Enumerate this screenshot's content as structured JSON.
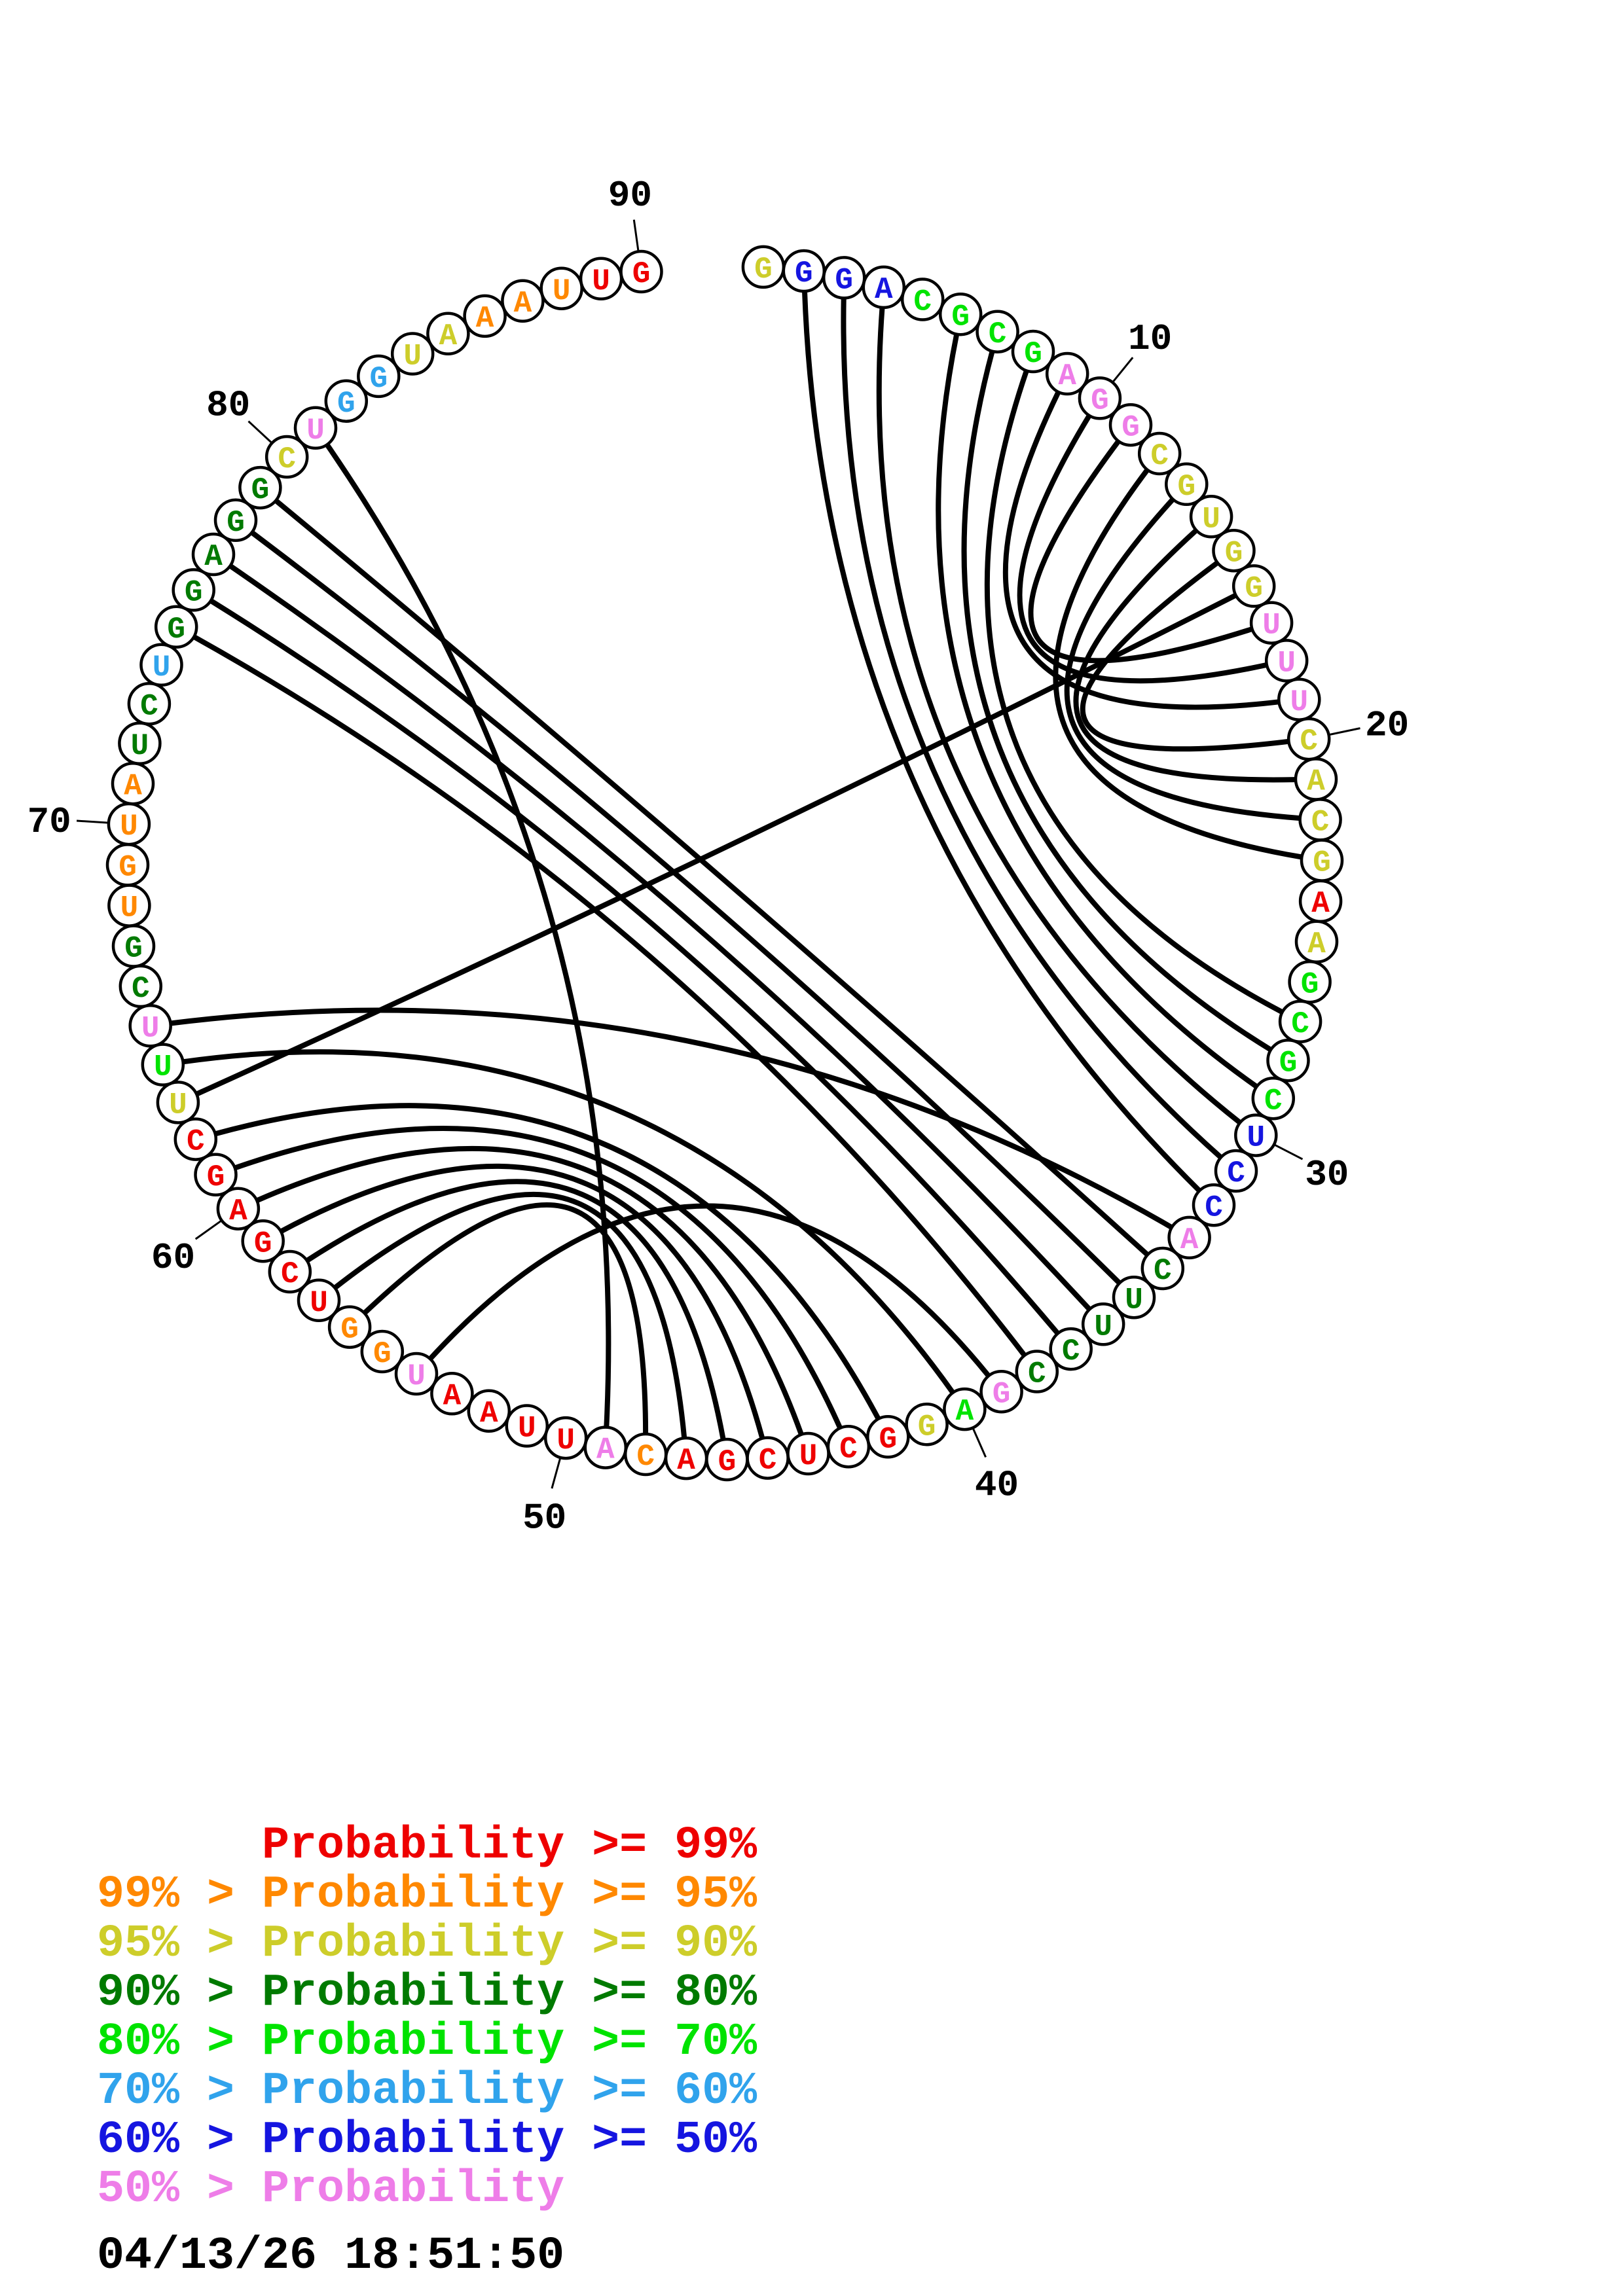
{
  "chart_data": {
    "type": "circular-arc-diagram",
    "title": "RNA secondary structure circle plot with base-pair probability coloring",
    "sequence_length": 90,
    "sequence": "GGGACGCGAGGCGUGGUUUCACGAAGCGCUCCACUUCCGAGGCUCGACAUUAAUGGUCGAGCUUUCGUGUAUCUGGAGGCUGGUAAAUUG",
    "nucleotides": [
      {
        "i": 1,
        "base": "G",
        "class": "p90"
      },
      {
        "i": 2,
        "base": "G",
        "class": "p50"
      },
      {
        "i": 3,
        "base": "G",
        "class": "p50"
      },
      {
        "i": 4,
        "base": "A",
        "class": "p50"
      },
      {
        "i": 5,
        "base": "C",
        "class": "p70"
      },
      {
        "i": 6,
        "base": "G",
        "class": "p70"
      },
      {
        "i": 7,
        "base": "C",
        "class": "p70"
      },
      {
        "i": 8,
        "base": "G",
        "class": "p70"
      },
      {
        "i": 9,
        "base": "A",
        "class": "plt50"
      },
      {
        "i": 10,
        "base": "G",
        "class": "plt50"
      },
      {
        "i": 11,
        "base": "G",
        "class": "plt50"
      },
      {
        "i": 12,
        "base": "C",
        "class": "p90"
      },
      {
        "i": 13,
        "base": "G",
        "class": "p90"
      },
      {
        "i": 14,
        "base": "U",
        "class": "p90"
      },
      {
        "i": 15,
        "base": "G",
        "class": "p90"
      },
      {
        "i": 16,
        "base": "G",
        "class": "p90"
      },
      {
        "i": 17,
        "base": "U",
        "class": "plt50"
      },
      {
        "i": 18,
        "base": "U",
        "class": "plt50"
      },
      {
        "i": 19,
        "base": "U",
        "class": "plt50"
      },
      {
        "i": 20,
        "base": "C",
        "class": "p90"
      },
      {
        "i": 21,
        "base": "A",
        "class": "p90"
      },
      {
        "i": 22,
        "base": "C",
        "class": "p90"
      },
      {
        "i": 23,
        "base": "G",
        "class": "p90"
      },
      {
        "i": 24,
        "base": "A",
        "class": "p99"
      },
      {
        "i": 25,
        "base": "A",
        "class": "p90"
      },
      {
        "i": 26,
        "base": "G",
        "class": "p70"
      },
      {
        "i": 27,
        "base": "C",
        "class": "p70"
      },
      {
        "i": 28,
        "base": "G",
        "class": "p70"
      },
      {
        "i": 29,
        "base": "C",
        "class": "p70"
      },
      {
        "i": 30,
        "base": "U",
        "class": "p50"
      },
      {
        "i": 31,
        "base": "C",
        "class": "p50"
      },
      {
        "i": 32,
        "base": "C",
        "class": "p50"
      },
      {
        "i": 33,
        "base": "A",
        "class": "plt50"
      },
      {
        "i": 34,
        "base": "C",
        "class": "p80"
      },
      {
        "i": 35,
        "base": "U",
        "class": "p80"
      },
      {
        "i": 36,
        "base": "U",
        "class": "p80"
      },
      {
        "i": 37,
        "base": "C",
        "class": "p80"
      },
      {
        "i": 38,
        "base": "C",
        "class": "p80"
      },
      {
        "i": 39,
        "base": "G",
        "class": "plt50"
      },
      {
        "i": 40,
        "base": "A",
        "class": "p70"
      },
      {
        "i": 41,
        "base": "G",
        "class": "p90"
      },
      {
        "i": 42,
        "base": "G",
        "class": "p99"
      },
      {
        "i": 43,
        "base": "C",
        "class": "p99"
      },
      {
        "i": 44,
        "base": "U",
        "class": "p99"
      },
      {
        "i": 45,
        "base": "C",
        "class": "p99"
      },
      {
        "i": 46,
        "base": "G",
        "class": "p99"
      },
      {
        "i": 47,
        "base": "A",
        "class": "p99"
      },
      {
        "i": 48,
        "base": "C",
        "class": "p95"
      },
      {
        "i": 49,
        "base": "A",
        "class": "plt50"
      },
      {
        "i": 50,
        "base": "U",
        "class": "p99"
      },
      {
        "i": 51,
        "base": "U",
        "class": "p99"
      },
      {
        "i": 52,
        "base": "A",
        "class": "p99"
      },
      {
        "i": 53,
        "base": "A",
        "class": "p99"
      },
      {
        "i": 54,
        "base": "U",
        "class": "plt50"
      },
      {
        "i": 55,
        "base": "G",
        "class": "p95"
      },
      {
        "i": 56,
        "base": "G",
        "class": "p95"
      },
      {
        "i": 57,
        "base": "U",
        "class": "p99"
      },
      {
        "i": 58,
        "base": "C",
        "class": "p99"
      },
      {
        "i": 59,
        "base": "G",
        "class": "p99"
      },
      {
        "i": 60,
        "base": "A",
        "class": "p99"
      },
      {
        "i": 61,
        "base": "G",
        "class": "p99"
      },
      {
        "i": 62,
        "base": "C",
        "class": "p99"
      },
      {
        "i": 63,
        "base": "U",
        "class": "p90"
      },
      {
        "i": 64,
        "base": "U",
        "class": "p70"
      },
      {
        "i": 65,
        "base": "U",
        "class": "plt50"
      },
      {
        "i": 66,
        "base": "C",
        "class": "p80"
      },
      {
        "i": 67,
        "base": "G",
        "class": "p80"
      },
      {
        "i": 68,
        "base": "U",
        "class": "p95"
      },
      {
        "i": 69,
        "base": "G",
        "class": "p95"
      },
      {
        "i": 70,
        "base": "U",
        "class": "p95"
      },
      {
        "i": 71,
        "base": "A",
        "class": "p95"
      },
      {
        "i": 72,
        "base": "U",
        "class": "p80"
      },
      {
        "i": 73,
        "base": "C",
        "class": "p80"
      },
      {
        "i": 74,
        "base": "U",
        "class": "p60"
      },
      {
        "i": 75,
        "base": "G",
        "class": "p80"
      },
      {
        "i": 76,
        "base": "G",
        "class": "p80"
      },
      {
        "i": 77,
        "base": "A",
        "class": "p80"
      },
      {
        "i": 78,
        "base": "G",
        "class": "p80"
      },
      {
        "i": 79,
        "base": "G",
        "class": "p80"
      },
      {
        "i": 80,
        "base": "C",
        "class": "p90"
      },
      {
        "i": 81,
        "base": "U",
        "class": "plt50"
      },
      {
        "i": 82,
        "base": "G",
        "class": "p60"
      },
      {
        "i": 83,
        "base": "G",
        "class": "p60"
      },
      {
        "i": 84,
        "base": "U",
        "class": "p90"
      },
      {
        "i": 85,
        "base": "A",
        "class": "p90"
      },
      {
        "i": 86,
        "base": "A",
        "class": "p95"
      },
      {
        "i": 87,
        "base": "A",
        "class": "p95"
      },
      {
        "i": 88,
        "base": "U",
        "class": "p95"
      },
      {
        "i": 89,
        "base": "U",
        "class": "p99"
      },
      {
        "i": 90,
        "base": "G",
        "class": "p99"
      }
    ],
    "pairs": [
      [
        2,
        32
      ],
      [
        3,
        31
      ],
      [
        4,
        30
      ],
      [
        6,
        29
      ],
      [
        7,
        28
      ],
      [
        8,
        27
      ],
      [
        9,
        19
      ],
      [
        10,
        18
      ],
      [
        11,
        17
      ],
      [
        12,
        23
      ],
      [
        13,
        22
      ],
      [
        14,
        21
      ],
      [
        15,
        20
      ],
      [
        16,
        63
      ],
      [
        33,
        65
      ],
      [
        34,
        79
      ],
      [
        35,
        78
      ],
      [
        36,
        77
      ],
      [
        37,
        76
      ],
      [
        38,
        75
      ],
      [
        39,
        54
      ],
      [
        40,
        64
      ],
      [
        42,
        62
      ],
      [
        43,
        61
      ],
      [
        44,
        60
      ],
      [
        45,
        59
      ],
      [
        46,
        58
      ],
      [
        47,
        57
      ],
      [
        48,
        56
      ],
      [
        49,
        81
      ]
    ],
    "position_labels": [
      "10",
      "20",
      "30",
      "40",
      "50",
      "60",
      "70",
      "80",
      "90"
    ],
    "legend": [
      {
        "text": "Probability >= 99%",
        "class": "p99",
        "indent": true
      },
      {
        "text": "99% > Probability >= 95%",
        "class": "p95",
        "indent": false
      },
      {
        "text": "95% > Probability >= 90%",
        "class": "p90",
        "indent": false
      },
      {
        "text": "90% > Probability >= 80%",
        "class": "p80",
        "indent": false
      },
      {
        "text": "80% > Probability >= 70%",
        "class": "p70",
        "indent": false
      },
      {
        "text": "70% > Probability >= 60%",
        "class": "p60",
        "indent": false
      },
      {
        "text": "60% > Probability >= 50%",
        "class": "p50",
        "indent": false
      },
      {
        "text": "50% > Probability",
        "class": "plt50",
        "indent": false
      }
    ],
    "timestamp": "04/13/26 18:51:50",
    "colors": {
      "p99": "#EE0000",
      "p95": "#FF8800",
      "p90": "#CDCD2A",
      "p80": "#007A00",
      "p70": "#00E300",
      "p60": "#30A3EC",
      "p50": "#1515E0",
      "plt50": "#EE7DE8"
    },
    "layout_hints": {
      "legend_position": "bottom-left",
      "grid": false,
      "gap_between_sequence_ends": "top, between position 90 and position 1"
    }
  }
}
